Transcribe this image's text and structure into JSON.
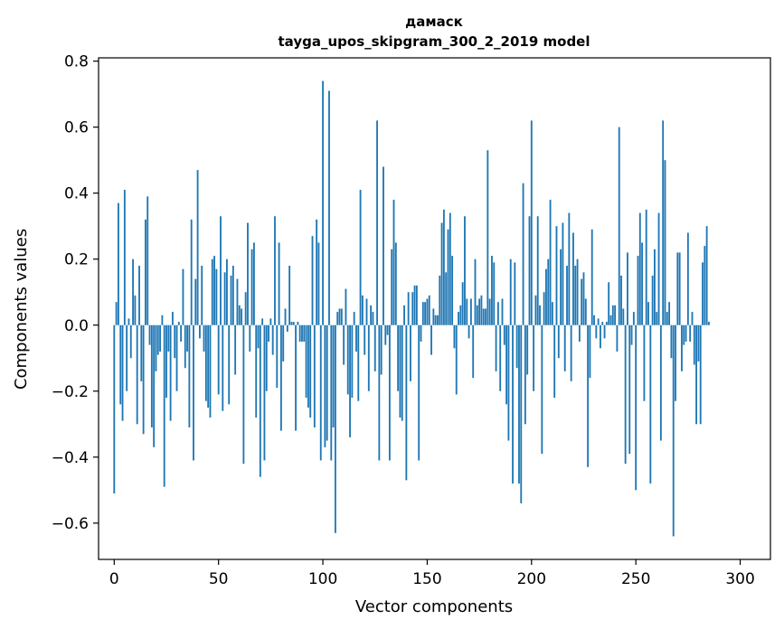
{
  "chart_data": {
    "type": "bar",
    "title": "дамаск",
    "subtitle": "tayga_upos_skipgram_300_2_2019 model",
    "xlabel": "Vector components",
    "ylabel": "Components values",
    "xlim": [
      -7.5,
      314.5
    ],
    "ylim": [
      -0.71,
      0.81
    ],
    "x_ticks": [
      0,
      50,
      100,
      150,
      200,
      250,
      300
    ],
    "x_tick_labels": [
      "0",
      "50",
      "100",
      "150",
      "200",
      "250",
      "300"
    ],
    "y_ticks": [
      -0.6,
      -0.4,
      -0.2,
      0.0,
      0.2,
      0.4,
      0.6,
      0.8
    ],
    "y_tick_labels": [
      "−0.6",
      "−0.4",
      "−0.2",
      "0.0",
      "0.2",
      "0.4",
      "0.6",
      "0.8"
    ],
    "bar_color": "#1f77b4",
    "grid": false,
    "values": [
      -0.51,
      0.07,
      0.37,
      -0.24,
      -0.29,
      0.41,
      -0.2,
      0.02,
      -0.1,
      0.2,
      0.09,
      -0.3,
      0.18,
      -0.17,
      -0.33,
      0.32,
      0.39,
      -0.06,
      -0.31,
      -0.37,
      -0.14,
      -0.09,
      -0.08,
      0.03,
      -0.49,
      -0.22,
      -0.08,
      -0.29,
      0.04,
      -0.1,
      -0.2,
      0.01,
      -0.05,
      0.17,
      -0.13,
      -0.08,
      -0.31,
      0.32,
      -0.41,
      0.14,
      0.47,
      -0.04,
      0.18,
      -0.08,
      -0.23,
      -0.25,
      -0.28,
      0.2,
      0.21,
      0.17,
      -0.21,
      0.33,
      -0.26,
      0.16,
      0.2,
      -0.24,
      0.15,
      0.18,
      -0.15,
      0.14,
      0.06,
      0.05,
      -0.42,
      0.1,
      0.31,
      -0.08,
      0.23,
      0.25,
      -0.28,
      -0.07,
      -0.46,
      0.02,
      -0.41,
      -0.2,
      -0.05,
      0.02,
      -0.09,
      0.33,
      -0.19,
      0.25,
      -0.32,
      -0.11,
      0.05,
      -0.02,
      0.18,
      0.01,
      0.01,
      -0.32,
      0.01,
      -0.05,
      -0.05,
      -0.05,
      -0.22,
      -0.25,
      -0.28,
      0.27,
      -0.31,
      0.32,
      0.25,
      -0.41,
      0.74,
      -0.37,
      -0.35,
      0.71,
      -0.41,
      -0.31,
      -0.63,
      0.04,
      0.05,
      0.05,
      -0.12,
      0.11,
      -0.21,
      -0.34,
      -0.22,
      0.04,
      -0.08,
      -0.23,
      0.41,
      0.09,
      -0.09,
      0.08,
      -0.2,
      0.06,
      0.04,
      -0.14,
      0.62,
      -0.41,
      -0.15,
      0.48,
      -0.06,
      -0.03,
      -0.41,
      0.23,
      0.38,
      0.25,
      -0.2,
      -0.28,
      -0.29,
      0.06,
      -0.47,
      0.1,
      -0.17,
      0.1,
      0.12,
      0.12,
      -0.41,
      -0.05,
      0.07,
      0.07,
      0.08,
      0.09,
      -0.09,
      0.05,
      0.03,
      0.03,
      0.15,
      0.31,
      0.35,
      0.16,
      0.29,
      0.34,
      0.21,
      -0.07,
      -0.21,
      0.04,
      0.06,
      0.13,
      0.33,
      0.08,
      -0.04,
      0.08,
      -0.16,
      0.2,
      0.06,
      0.08,
      0.09,
      0.05,
      0.05,
      0.53,
      0.08,
      0.21,
      0.19,
      -0.14,
      0.07,
      -0.2,
      0.08,
      -0.06,
      -0.24,
      -0.35,
      0.2,
      -0.48,
      0.19,
      -0.13,
      -0.48,
      -0.54,
      0.43,
      -0.3,
      -0.15,
      0.33,
      0.62,
      -0.2,
      0.09,
      0.33,
      0.06,
      -0.39,
      0.1,
      0.17,
      0.2,
      0.38,
      0.07,
      -0.22,
      0.3,
      -0.1,
      0.23,
      0.31,
      -0.14,
      0.18,
      0.34,
      -0.17,
      0.28,
      0.18,
      0.2,
      -0.05,
      0.14,
      0.16,
      0.08,
      -0.43,
      -0.16,
      0.29,
      0.03,
      -0.04,
      0.02,
      -0.07,
      0.01,
      -0.04,
      0.01,
      0.13,
      0.03,
      0.06,
      0.06,
      -0.08,
      0.6,
      0.15,
      0.05,
      -0.42,
      0.22,
      -0.39,
      -0.06,
      0.04,
      -0.5,
      0.21,
      0.34,
      0.25,
      -0.23,
      0.35,
      0.07,
      -0.48,
      0.15,
      0.23,
      0.04,
      0.34,
      -0.35,
      0.62,
      0.5,
      0.04,
      0.07,
      -0.1,
      -0.64,
      -0.23,
      0.22,
      0.22,
      -0.14,
      -0.06,
      -0.05,
      0.28,
      -0.05,
      0.04,
      -0.12,
      -0.3,
      -0.11,
      -0.3,
      0.19,
      0.24,
      0.3,
      0.01
    ]
  }
}
